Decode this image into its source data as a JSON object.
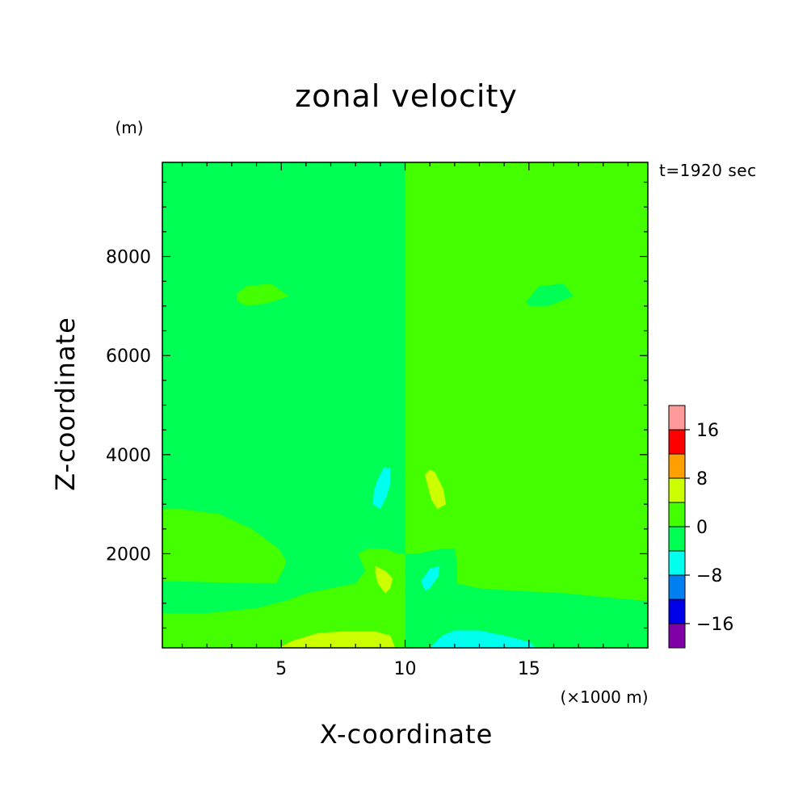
{
  "chart_data": {
    "type": "heatmap",
    "title": "zonal velocity",
    "xlabel": "X-coordinate",
    "ylabel": "Z-coordinate",
    "x_unit": "(×1000 m)",
    "y_unit": "(m)",
    "time_label": "t=1920 sec",
    "xlim": [
      0.2,
      19.8
    ],
    "ylim": [
      100,
      9900
    ],
    "x_ticks": [
      5,
      10,
      15
    ],
    "x_tick_labels": [
      "5",
      "10",
      "15"
    ],
    "y_ticks": [
      2000,
      4000,
      6000,
      8000
    ],
    "y_tick_labels": [
      "2000",
      "4000",
      "6000",
      "8000"
    ],
    "colorbar": {
      "levels": [
        -20,
        -16,
        -12,
        -8,
        -4,
        0,
        4,
        8,
        12,
        16,
        20
      ],
      "colors": [
        "#8000a8",
        "#0000e8",
        "#0080f0",
        "#00ffee",
        "#00ff55",
        "#44ff00",
        "#ccff00",
        "#ffa000",
        "#ff0000",
        "#ff9a9a"
      ],
      "tick_values": [
        -16,
        -8,
        0,
        8,
        16
      ],
      "tick_labels": [
        "−16",
        "−8",
        "0",
        "8",
        "16"
      ]
    },
    "background_bins": {
      "x_less_than_10": "-4 to 0",
      "x_greater_than_10": "0 to 4"
    },
    "regions": [
      {
        "name": "upper-left-positive-blob",
        "bin": "0 to 4",
        "polygon": [
          [
            3.2,
            7250
          ],
          [
            3.6,
            7400
          ],
          [
            4.6,
            7450
          ],
          [
            5.3,
            7200
          ],
          [
            4.4,
            7050
          ],
          [
            3.6,
            7000
          ],
          [
            3.2,
            7100
          ]
        ]
      },
      {
        "name": "upper-right-negative-blob",
        "bin": "-4 to 0",
        "polygon": [
          [
            14.9,
            7100
          ],
          [
            15.4,
            7400
          ],
          [
            16.4,
            7450
          ],
          [
            16.8,
            7200
          ],
          [
            15.8,
            7000
          ],
          [
            15.0,
            7000
          ]
        ]
      },
      {
        "name": "lower-left-positive-band",
        "bin": "0 to 4",
        "polygon": [
          [
            0.2,
            2900
          ],
          [
            1.0,
            2900
          ],
          [
            2.5,
            2800
          ],
          [
            3.8,
            2500
          ],
          [
            4.9,
            2100
          ],
          [
            5.2,
            1850
          ],
          [
            5.1,
            1700
          ],
          [
            4.8,
            1400
          ],
          [
            4.0,
            1400
          ],
          [
            0.2,
            1450
          ]
        ]
      },
      {
        "name": "lower-left-positive-band-2",
        "bin": "0 to 4",
        "polygon": [
          [
            0.2,
            800
          ],
          [
            2.0,
            800
          ],
          [
            4.0,
            900
          ],
          [
            5.2,
            1050
          ],
          [
            6.0,
            1200
          ],
          [
            7.0,
            1300
          ],
          [
            8.0,
            1400
          ],
          [
            8.4,
            1650
          ],
          [
            8.1,
            2000
          ],
          [
            8.5,
            2100
          ],
          [
            9.2,
            2100
          ],
          [
            9.7,
            2000
          ],
          [
            10.0,
            2000
          ],
          [
            10.0,
            100
          ],
          [
            0.2,
            100
          ]
        ]
      },
      {
        "name": "lower-right-negative-band",
        "bin": "-4 to 0",
        "polygon": [
          [
            10.0,
            2000
          ],
          [
            10.5,
            2000
          ],
          [
            11.5,
            2100
          ],
          [
            12.0,
            2100
          ],
          [
            12.1,
            1800
          ],
          [
            12.1,
            1400
          ],
          [
            13.0,
            1300
          ],
          [
            14.5,
            1250
          ],
          [
            16.5,
            1200
          ],
          [
            18.5,
            1100
          ],
          [
            19.8,
            1050
          ],
          [
            19.8,
            100
          ],
          [
            10.0,
            100
          ]
        ]
      },
      {
        "name": "lower-right-positive-band",
        "bin": "0 to 4",
        "polygon": [
          [
            19.8,
            2900
          ],
          [
            19.0,
            2800
          ],
          [
            17.5,
            2650
          ],
          [
            16.3,
            2300
          ],
          [
            15.5,
            2100
          ],
          [
            15.3,
            1800
          ],
          [
            15.6,
            1500
          ],
          [
            17.0,
            1500
          ],
          [
            19.8,
            1450
          ]
        ]
      },
      {
        "name": "upper-mid-negative-cell",
        "bin": "-8 to -4",
        "polygon": [
          [
            8.9,
            3500
          ],
          [
            9.15,
            3750
          ],
          [
            9.4,
            3720
          ],
          [
            9.4,
            3400
          ],
          [
            9.25,
            3150
          ],
          [
            9.0,
            2900
          ],
          [
            8.7,
            3000
          ],
          [
            8.75,
            3300
          ]
        ]
      },
      {
        "name": "upper-mid-positive-cell",
        "bin": "4 to 8",
        "polygon": [
          [
            11.0,
            3700
          ],
          [
            11.2,
            3650
          ],
          [
            11.55,
            3300
          ],
          [
            11.65,
            3000
          ],
          [
            11.3,
            2900
          ],
          [
            11.05,
            3100
          ],
          [
            10.8,
            3600
          ]
        ]
      },
      {
        "name": "lower-mid-positive-cell",
        "bin": "4 to 8",
        "polygon": [
          [
            8.8,
            1750
          ],
          [
            9.2,
            1650
          ],
          [
            9.5,
            1500
          ],
          [
            9.4,
            1300
          ],
          [
            9.2,
            1200
          ],
          [
            8.9,
            1400
          ],
          [
            8.8,
            1600
          ]
        ]
      },
      {
        "name": "lower-mid-negative-cell",
        "bin": "-8 to -4",
        "polygon": [
          [
            11.0,
            1300
          ],
          [
            11.35,
            1550
          ],
          [
            11.4,
            1750
          ],
          [
            11.0,
            1700
          ],
          [
            10.65,
            1450
          ],
          [
            10.8,
            1250
          ]
        ]
      },
      {
        "name": "surface-positive-lobe",
        "bin": "4 to 8",
        "polygon": [
          [
            4.9,
            100
          ],
          [
            5.5,
            250
          ],
          [
            6.5,
            400
          ],
          [
            7.5,
            430
          ],
          [
            8.8,
            430
          ],
          [
            9.4,
            350
          ],
          [
            9.6,
            100
          ]
        ]
      },
      {
        "name": "surface-negative-lobe",
        "bin": "-8 to -4",
        "polygon": [
          [
            11.0,
            100
          ],
          [
            11.5,
            350
          ],
          [
            12.0,
            450
          ],
          [
            13.0,
            450
          ],
          [
            14.0,
            350
          ],
          [
            15.0,
            220
          ],
          [
            15.3,
            100
          ]
        ]
      }
    ]
  }
}
